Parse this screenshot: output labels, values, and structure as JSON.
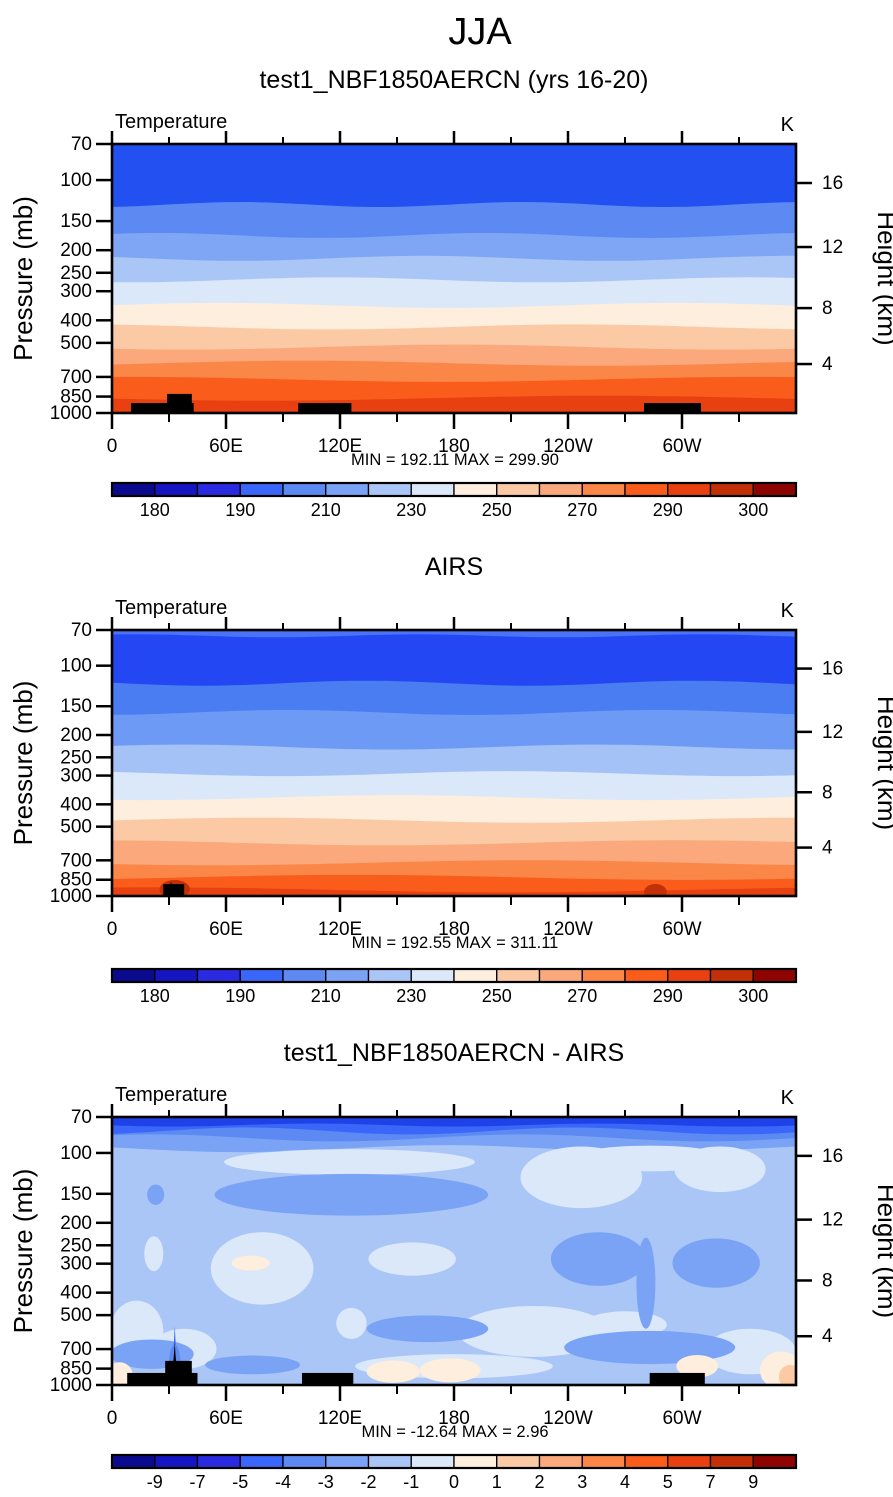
{
  "suptitle": "JJA",
  "chart_data": {
    "type": "filled-contour-pressure-longitude-cross-sections",
    "season": "JJA",
    "variable": "Temperature",
    "units": "K",
    "x_axis": {
      "tick_labels": [
        "0",
        "60E",
        "120E",
        "180",
        "120W",
        "60W"
      ],
      "tick_lons": [
        0,
        60,
        120,
        180,
        240,
        300
      ],
      "minor_lons": [
        30,
        90,
        150,
        210,
        270,
        330
      ],
      "range_deg": [
        0,
        360
      ]
    },
    "y_axis_pressure": {
      "title": "Pressure (mb)",
      "ticks": [
        70,
        100,
        150,
        200,
        250,
        300,
        400,
        500,
        700,
        850,
        1000
      ],
      "scale": "log"
    },
    "y_axis_height": {
      "title": "Height (km)",
      "ticks": [
        16,
        12,
        8,
        4
      ],
      "fracs": [
        0.145,
        0.383,
        0.61,
        0.818
      ]
    },
    "palette16": [
      "#0a0a8e",
      "#1515c2",
      "#2a2ae0",
      "#3a66fa",
      "#5c8af2",
      "#7aa3f5",
      "#aac6f7",
      "#dbe8fa",
      "#fdeedd",
      "#fbc9a4",
      "#faa87c",
      "#fa8748",
      "#fa5c1c",
      "#e84010",
      "#c33008",
      "#8e0400"
    ],
    "panels": [
      {
        "title": "test1_NBF1850AERCN (yrs 16-20)",
        "field_label": "Temperature",
        "units_label": "K",
        "min": 192.11,
        "max": 299.9,
        "stats_text": "MIN = 192.11  MAX = 299.90",
        "colorbar": {
          "labels": [
            "180",
            "190",
            "210",
            "230",
            "250",
            "270",
            "290",
            "300"
          ],
          "boundary_indices": [
            1,
            3,
            5,
            7,
            9,
            11,
            13,
            15
          ],
          "levels": [
            180,
            185,
            190,
            200,
            210,
            220,
            230,
            240,
            250,
            260,
            270,
            280,
            290,
            295,
            300
          ]
        },
        "bands": [
          {
            "top_frac": 0.0,
            "color": "#2350f0"
          },
          {
            "top_frac": 0.225,
            "color": "#5c8af2"
          },
          {
            "top_frac": 0.34,
            "color": "#7fa6f5"
          },
          {
            "top_frac": 0.425,
            "color": "#aac6f7"
          },
          {
            "top_frac": 0.505,
            "color": "#dbe8fa"
          },
          {
            "top_frac": 0.6,
            "color": "#fdeedd"
          },
          {
            "top_frac": 0.68,
            "color": "#fbc9a4"
          },
          {
            "top_frac": 0.755,
            "color": "#faa87c"
          },
          {
            "top_frac": 0.815,
            "color": "#fa8748"
          },
          {
            "top_frac": 0.875,
            "color": "#fa5c1c"
          },
          {
            "top_frac": 0.945,
            "color": "#e84010"
          }
        ],
        "blobs": [],
        "topo": [
          {
            "lon0": 10,
            "lon1": 43,
            "height_frac": 0.037
          },
          {
            "lon0": 29,
            "lon1": 42,
            "height_frac": 0.071
          },
          {
            "lon0": 98,
            "lon1": 126,
            "height_frac": 0.037
          },
          {
            "lon0": 280,
            "lon1": 310,
            "height_frac": 0.037
          }
        ],
        "topo_spikes": []
      },
      {
        "title": "AIRS",
        "field_label": "Temperature",
        "units_label": "K",
        "min": 192.55,
        "max": 311.11,
        "stats_text": "MIN = 192.55  MAX = 311.11",
        "colorbar": {
          "labels": [
            "180",
            "190",
            "210",
            "230",
            "250",
            "270",
            "290",
            "300"
          ],
          "boundary_indices": [
            1,
            3,
            5,
            7,
            9,
            11,
            13,
            15
          ],
          "levels": [
            180,
            185,
            190,
            200,
            210,
            220,
            230,
            240,
            250,
            260,
            270,
            280,
            290,
            295,
            300
          ]
        },
        "bands": [
          {
            "top_frac": 0.0,
            "color": "#4a73f7"
          },
          {
            "top_frac": 0.022,
            "color": "#2347f2"
          },
          {
            "top_frac": 0.2,
            "color": "#4a7df2"
          },
          {
            "top_frac": 0.31,
            "color": "#6d9af4"
          },
          {
            "top_frac": 0.44,
            "color": "#a5c2f7"
          },
          {
            "top_frac": 0.54,
            "color": "#dbe8fa"
          },
          {
            "top_frac": 0.63,
            "color": "#fdeedd"
          },
          {
            "top_frac": 0.715,
            "color": "#fbc9a4"
          },
          {
            "top_frac": 0.8,
            "color": "#faa87c"
          },
          {
            "top_frac": 0.875,
            "color": "#fa8748"
          },
          {
            "top_frac": 0.93,
            "color": "#fa5c1c"
          },
          {
            "top_frac": 0.977,
            "color": "#e84010"
          }
        ],
        "blobs": [
          {
            "shape": "ellipse",
            "color": "#c33008",
            "lon": 33,
            "frac": 0.975,
            "rlon": 8,
            "rfrac": 0.035
          },
          {
            "shape": "poly",
            "color": "#8e0400",
            "pts": [
              [
                28,
                1.0
              ],
              [
                31,
                0.945
              ],
              [
                34,
                1.0
              ]
            ]
          },
          {
            "shape": "ellipse",
            "color": "#c33008",
            "lon": 286,
            "frac": 0.985,
            "rlon": 6,
            "rfrac": 0.03
          }
        ],
        "topo": [
          {
            "lon0": 27,
            "lon1": 38,
            "height_frac": 0.045
          }
        ],
        "topo_spikes": []
      },
      {
        "title": "test1_NBF1850AERCN - AIRS",
        "field_label": "Temperature",
        "units_label": "K",
        "min": -12.64,
        "max": 2.96,
        "stats_text": "MIN = -12.64  MAX =  2.96",
        "colorbar": {
          "labels": [
            "-9",
            "-7",
            "-5",
            "-4",
            "-3",
            "-2",
            "-1",
            "0",
            "1",
            "2",
            "3",
            "4",
            "5",
            "7",
            "9"
          ],
          "boundary_indices": [
            1,
            2,
            3,
            4,
            5,
            6,
            7,
            8,
            9,
            10,
            11,
            12,
            13,
            14,
            15
          ],
          "levels": [
            -9,
            -7,
            -5,
            -4,
            -3,
            -2,
            -1,
            0,
            1,
            2,
            3,
            4,
            5,
            7,
            9
          ]
        },
        "bands": [
          {
            "top_frac": 0.0,
            "color": "#1e42e8"
          },
          {
            "top_frac": 0.03,
            "color": "#3a66fa"
          },
          {
            "top_frac": 0.052,
            "color": "#5c8af2"
          },
          {
            "top_frac": 0.078,
            "color": "#7aa3f5"
          },
          {
            "top_frac": 0.118,
            "color": "#aac6f7"
          }
        ],
        "blobs": [
          {
            "shape": "ellipse",
            "color": "#dbe8fa",
            "lon": 125,
            "frac": 0.168,
            "rlon": 66,
            "rfrac": 0.048
          },
          {
            "shape": "ellipse",
            "color": "#dbe8fa",
            "lon": 247,
            "frac": 0.225,
            "rlon": 32,
            "rfrac": 0.115
          },
          {
            "shape": "ellipse",
            "color": "#dbe8fa",
            "lon": 320,
            "frac": 0.195,
            "rlon": 24,
            "rfrac": 0.085
          },
          {
            "shape": "ellipse",
            "color": "#dbe8fa",
            "lon": 283,
            "frac": 0.155,
            "rlon": 42,
            "rfrac": 0.048
          },
          {
            "shape": "ellipse",
            "color": "#dbe8fa",
            "lon": 79,
            "frac": 0.565,
            "rlon": 27,
            "rfrac": 0.135
          },
          {
            "shape": "ellipse",
            "color": "#dbe8fa",
            "lon": 22,
            "frac": 0.51,
            "rlon": 5,
            "rfrac": 0.065
          },
          {
            "shape": "ellipse",
            "color": "#dbe8fa",
            "lon": 158,
            "frac": 0.53,
            "rlon": 23,
            "rfrac": 0.062
          },
          {
            "shape": "ellipse",
            "color": "#dbe8fa",
            "lon": 126,
            "frac": 0.77,
            "rlon": 8,
            "rfrac": 0.058
          },
          {
            "shape": "ellipse",
            "color": "#dbe8fa",
            "lon": 13,
            "frac": 0.8,
            "rlon": 14,
            "rfrac": 0.115
          },
          {
            "shape": "ellipse",
            "color": "#dbe8fa",
            "lon": 38,
            "frac": 0.865,
            "rlon": 17,
            "rfrac": 0.075
          },
          {
            "shape": "ellipse",
            "color": "#dbe8fa",
            "lon": 222,
            "frac": 0.8,
            "rlon": 40,
            "rfrac": 0.095
          },
          {
            "shape": "ellipse",
            "color": "#dbe8fa",
            "lon": 270,
            "frac": 0.775,
            "rlon": 22,
            "rfrac": 0.05
          },
          {
            "shape": "ellipse",
            "color": "#dbe8fa",
            "lon": 180,
            "frac": 0.93,
            "rlon": 52,
            "rfrac": 0.045
          },
          {
            "shape": "ellipse",
            "color": "#dbe8fa",
            "lon": 336,
            "frac": 0.875,
            "rlon": 24,
            "rfrac": 0.085
          },
          {
            "shape": "ellipse",
            "color": "#7aa3f5",
            "lon": 126,
            "frac": 0.29,
            "rlon": 72,
            "rfrac": 0.078
          },
          {
            "shape": "ellipse",
            "color": "#7aa3f5",
            "lon": 23,
            "frac": 0.29,
            "rlon": 4.5,
            "rfrac": 0.038
          },
          {
            "shape": "ellipse",
            "color": "#7aa3f5",
            "lon": 256,
            "frac": 0.53,
            "rlon": 25,
            "rfrac": 0.1
          },
          {
            "shape": "ellipse",
            "color": "#7aa3f5",
            "lon": 318,
            "frac": 0.545,
            "rlon": 23,
            "rfrac": 0.092
          },
          {
            "shape": "ellipse",
            "color": "#7aa3f5",
            "lon": 281,
            "frac": 0.62,
            "rlon": 5,
            "rfrac": 0.17
          },
          {
            "shape": "ellipse",
            "color": "#7aa3f5",
            "lon": 283,
            "frac": 0.86,
            "rlon": 45,
            "rfrac": 0.062
          },
          {
            "shape": "ellipse",
            "color": "#7aa3f5",
            "lon": 166,
            "frac": 0.79,
            "rlon": 32,
            "rfrac": 0.05
          },
          {
            "shape": "ellipse",
            "color": "#7aa3f5",
            "lon": 21,
            "frac": 0.885,
            "rlon": 22,
            "rfrac": 0.055
          },
          {
            "shape": "ellipse",
            "color": "#7aa3f5",
            "lon": 74,
            "frac": 0.925,
            "rlon": 25,
            "rfrac": 0.035
          },
          {
            "shape": "poly",
            "color": "#3a66fa",
            "pts": [
              [
                31.5,
                1.0
              ],
              [
                33,
                0.78
              ],
              [
                34.7,
                1.0
              ]
            ]
          },
          {
            "shape": "ellipse",
            "color": "#5c8af2",
            "lon": 33,
            "frac": 0.92,
            "rlon": 3,
            "rfrac": 0.07
          },
          {
            "shape": "ellipse",
            "color": "#fdeedd",
            "lon": 4,
            "frac": 0.965,
            "rlon": 7,
            "rfrac": 0.05
          },
          {
            "shape": "ellipse",
            "color": "#fdeedd",
            "lon": 148,
            "frac": 0.95,
            "rlon": 14,
            "rfrac": 0.042
          },
          {
            "shape": "ellipse",
            "color": "#fdeedd",
            "lon": 178,
            "frac": 0.945,
            "rlon": 16,
            "rfrac": 0.045
          },
          {
            "shape": "ellipse",
            "color": "#fdeedd",
            "lon": 308,
            "frac": 0.93,
            "rlon": 11,
            "rfrac": 0.042
          },
          {
            "shape": "ellipse",
            "color": "#fdeedd",
            "lon": 352,
            "frac": 0.945,
            "rlon": 11,
            "rfrac": 0.07
          },
          {
            "shape": "ellipse",
            "color": "#fdeedd",
            "lon": 73,
            "frac": 0.545,
            "rlon": 10,
            "rfrac": 0.028
          },
          {
            "shape": "ellipse",
            "color": "#fbc9a4",
            "lon": 357,
            "frac": 0.97,
            "rlon": 6,
            "rfrac": 0.045
          }
        ],
        "topo": [
          {
            "lon0": 8,
            "lon1": 45,
            "height_frac": 0.045
          },
          {
            "lon0": 28,
            "lon1": 42,
            "height_frac": 0.09
          },
          {
            "lon0": 100,
            "lon1": 127,
            "height_frac": 0.045
          },
          {
            "lon0": 283,
            "lon1": 312,
            "height_frac": 0.045
          }
        ],
        "topo_spikes": [
          {
            "pts": [
              [
                31.4,
                1.0
              ],
              [
                33,
                0.843
              ],
              [
                34.6,
                1.0
              ]
            ]
          }
        ]
      }
    ]
  }
}
